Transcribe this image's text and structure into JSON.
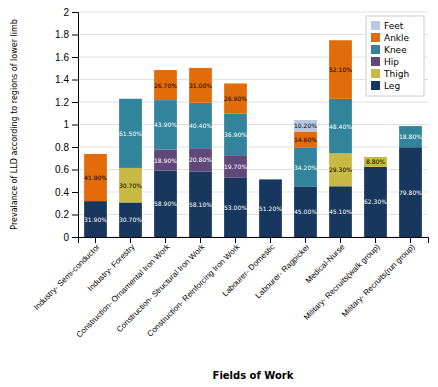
{
  "chart_data": {
    "type": "bar",
    "stacked": true,
    "data_labels": true,
    "grid": true,
    "legend": "upper right",
    "x_label": "Fields of Work",
    "y_label": "Prevalance of LLD according to regions of lower limb",
    "categories": [
      "Industry- Semi-conductor",
      "Industry- Forestry",
      "Construction- Ornamental Iron Work",
      "Construction- Structural Iron Work",
      "Construction- Reinforcing Iron Work",
      "Labourer- Domestic",
      "Labourer- Ragpicker",
      "Medical-Nurse",
      "Military- Recruits(walk group)",
      "Military- Recruits(run group)"
    ],
    "series": [
      {
        "name": "Leg",
        "color": "#17375E",
        "values": [
          0.319,
          0.307,
          0.589,
          0.581,
          0.53,
          0.512,
          0.45,
          0.451,
          0.623,
          0.798
        ],
        "value_labels": [
          "31.90%",
          "30.70%",
          "58.90%",
          "58.10%",
          "53.00%",
          "51.20%",
          "45.00%",
          "45.10%",
          "62.30%",
          "79.80%"
        ]
      },
      {
        "name": "Thigh",
        "color": "#C6B944",
        "values": [
          0.0,
          0.307,
          0.0,
          0.0,
          0.0,
          0.0,
          0.0,
          0.293,
          0.088,
          0.0
        ],
        "value_labels": [
          null,
          "30.70%",
          null,
          null,
          null,
          null,
          null,
          "29.30%",
          "8.80%",
          null
        ]
      },
      {
        "name": "Hip",
        "color": "#60497A",
        "values": [
          0.0,
          0.0,
          0.189,
          0.208,
          0.197,
          0.0,
          0.0,
          0.0,
          0.0,
          0.0
        ],
        "value_labels": [
          null,
          null,
          "18.90%",
          "20.80%",
          "19.70%",
          null,
          null,
          null,
          null,
          null
        ]
      },
      {
        "name": "Knee",
        "color": "#31849B",
        "values": [
          0.0,
          0.615,
          0.439,
          0.404,
          0.369,
          0.0,
          0.342,
          0.484,
          0.0,
          0.188
        ],
        "value_labels": [
          null,
          "61.50%",
          "43.90%",
          "40.40%",
          "36.90%",
          null,
          "34.20%",
          "48.40%",
          null,
          "18.80%"
        ]
      },
      {
        "name": "Ankle",
        "color": "#E36C0A",
        "values": [
          0.419,
          0.0,
          0.267,
          0.31,
          0.269,
          0.0,
          0.146,
          0.521,
          0.0,
          0.0
        ],
        "value_labels": [
          "41.90%",
          null,
          "26.70%",
          "31.00%",
          "26.90%",
          null,
          "14.60%",
          "52.10%",
          null,
          null
        ]
      },
      {
        "name": "Feet",
        "color": "#B8C9E1",
        "values": [
          0.0,
          0.0,
          0.0,
          0.0,
          0.0,
          0.0,
          0.102,
          0.0,
          0.0,
          0.0
        ],
        "value_labels": [
          null,
          null,
          null,
          null,
          null,
          null,
          "10.20%",
          null,
          null,
          null
        ]
      }
    ],
    "ylim": [
      0,
      2.0
    ],
    "yticks": [
      0,
      0.2,
      0.4,
      0.6,
      0.8,
      1,
      1.2,
      1.4,
      1.6,
      1.8,
      2
    ]
  }
}
